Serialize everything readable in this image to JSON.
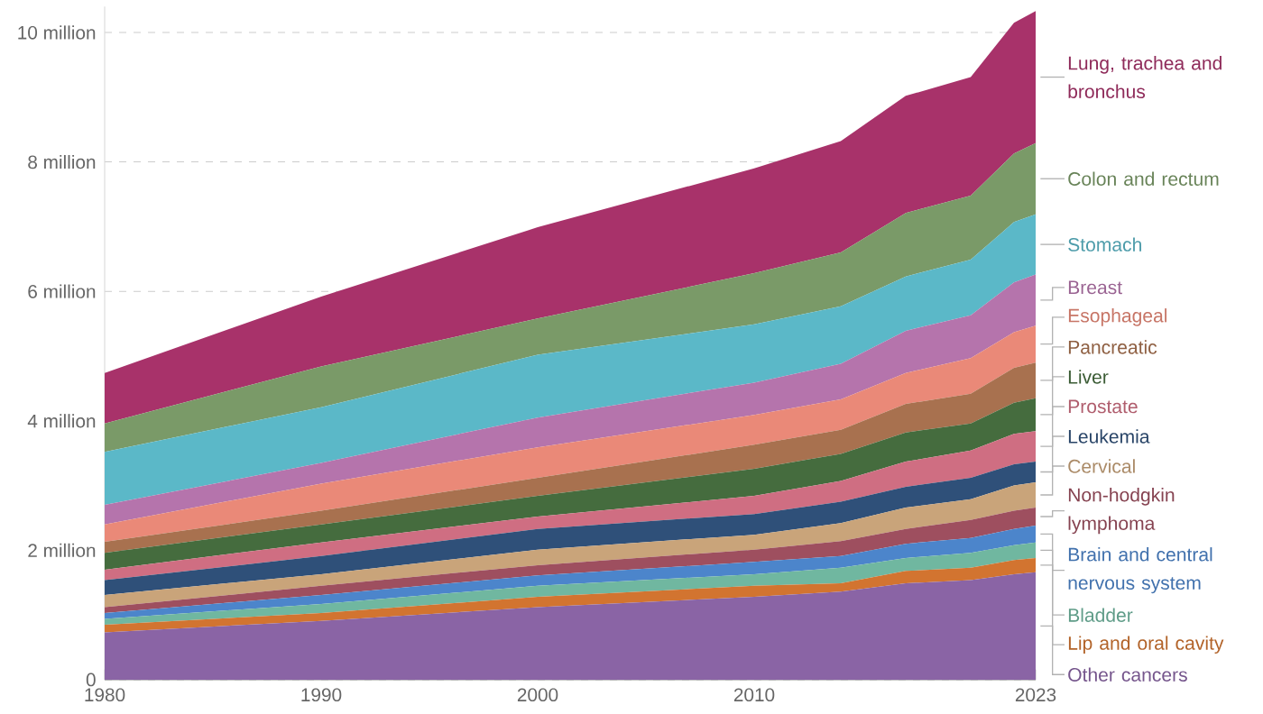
{
  "chart_data": {
    "type": "area",
    "stacked": true,
    "x": [
      1980,
      1990,
      2000,
      2010,
      2014,
      2017,
      2020,
      2022,
      2023
    ],
    "series": [
      {
        "name": "Other cancers",
        "color": "#8a64a5",
        "values": [
          0.73,
          0.91,
          1.12,
          1.28,
          1.36,
          1.49,
          1.54,
          1.63,
          1.66
        ]
      },
      {
        "name": "Lip and oral cavity",
        "color": "#d27430",
        "values": [
          0.12,
          0.12,
          0.16,
          0.17,
          0.13,
          0.19,
          0.19,
          0.22,
          0.22
        ]
      },
      {
        "name": "Bladder",
        "color": "#70b7a0",
        "values": [
          0.09,
          0.14,
          0.17,
          0.18,
          0.24,
          0.2,
          0.23,
          0.23,
          0.24
        ]
      },
      {
        "name": "Brain and central nervous system",
        "color": "#4c85cb",
        "values": [
          0.09,
          0.14,
          0.16,
          0.19,
          0.18,
          0.22,
          0.23,
          0.25,
          0.26
        ]
      },
      {
        "name": "Non-hodgkin lymphoma",
        "color": "#9e4f5f",
        "values": [
          0.09,
          0.14,
          0.16,
          0.19,
          0.23,
          0.23,
          0.28,
          0.28,
          0.28
        ]
      },
      {
        "name": "Cervical",
        "color": "#c9a47a",
        "values": [
          0.19,
          0.18,
          0.24,
          0.23,
          0.28,
          0.33,
          0.32,
          0.39,
          0.39
        ]
      },
      {
        "name": "Leukemia",
        "color": "#2f5079",
        "values": [
          0.23,
          0.28,
          0.32,
          0.32,
          0.33,
          0.32,
          0.33,
          0.33,
          0.32
        ]
      },
      {
        "name": "Prostate",
        "color": "#cf6e82",
        "values": [
          0.16,
          0.21,
          0.19,
          0.28,
          0.32,
          0.39,
          0.42,
          0.47,
          0.47
        ]
      },
      {
        "name": "Liver",
        "color": "#456c3e",
        "values": [
          0.26,
          0.28,
          0.32,
          0.42,
          0.42,
          0.45,
          0.42,
          0.48,
          0.51
        ]
      },
      {
        "name": "Pancreatic",
        "color": "#a8714f",
        "values": [
          0.17,
          0.21,
          0.28,
          0.37,
          0.37,
          0.44,
          0.46,
          0.54,
          0.55
        ]
      },
      {
        "name": "Esophageal",
        "color": "#ea8978",
        "values": [
          0.27,
          0.42,
          0.47,
          0.46,
          0.47,
          0.48,
          0.55,
          0.55,
          0.57
        ]
      },
      {
        "name": "Breast",
        "color": "#b574ac",
        "values": [
          0.3,
          0.32,
          0.46,
          0.5,
          0.55,
          0.65,
          0.66,
          0.77,
          0.79
        ]
      },
      {
        "name": "Stomach",
        "color": "#5bb8c8",
        "values": [
          0.82,
          0.86,
          0.97,
          0.9,
          0.89,
          0.84,
          0.86,
          0.93,
          0.93
        ]
      },
      {
        "name": "Colon and rectum",
        "color": "#7a9a68",
        "values": [
          0.44,
          0.63,
          0.56,
          0.79,
          0.83,
          0.98,
          0.99,
          1.06,
          1.1
        ]
      },
      {
        "name": "Lung, trachea and bronchus",
        "color": "#a8326a",
        "values": [
          0.78,
          1.08,
          1.41,
          1.62,
          1.72,
          1.81,
          1.83,
          2.02,
          2.04
        ]
      }
    ],
    "xlim": [
      1980,
      2023
    ],
    "ylim": [
      0,
      10.4
    ],
    "xticks": [
      1980,
      1990,
      2000,
      2010,
      2023
    ],
    "yticks": [
      0,
      {
        "value": 2,
        "label": "2 million"
      },
      {
        "value": 4,
        "label": "4 million"
      },
      {
        "value": 6,
        "label": "6 million"
      },
      {
        "value": 8,
        "label": "8 million"
      },
      {
        "value": 10,
        "label": "10 million"
      }
    ],
    "grid": "y"
  }
}
